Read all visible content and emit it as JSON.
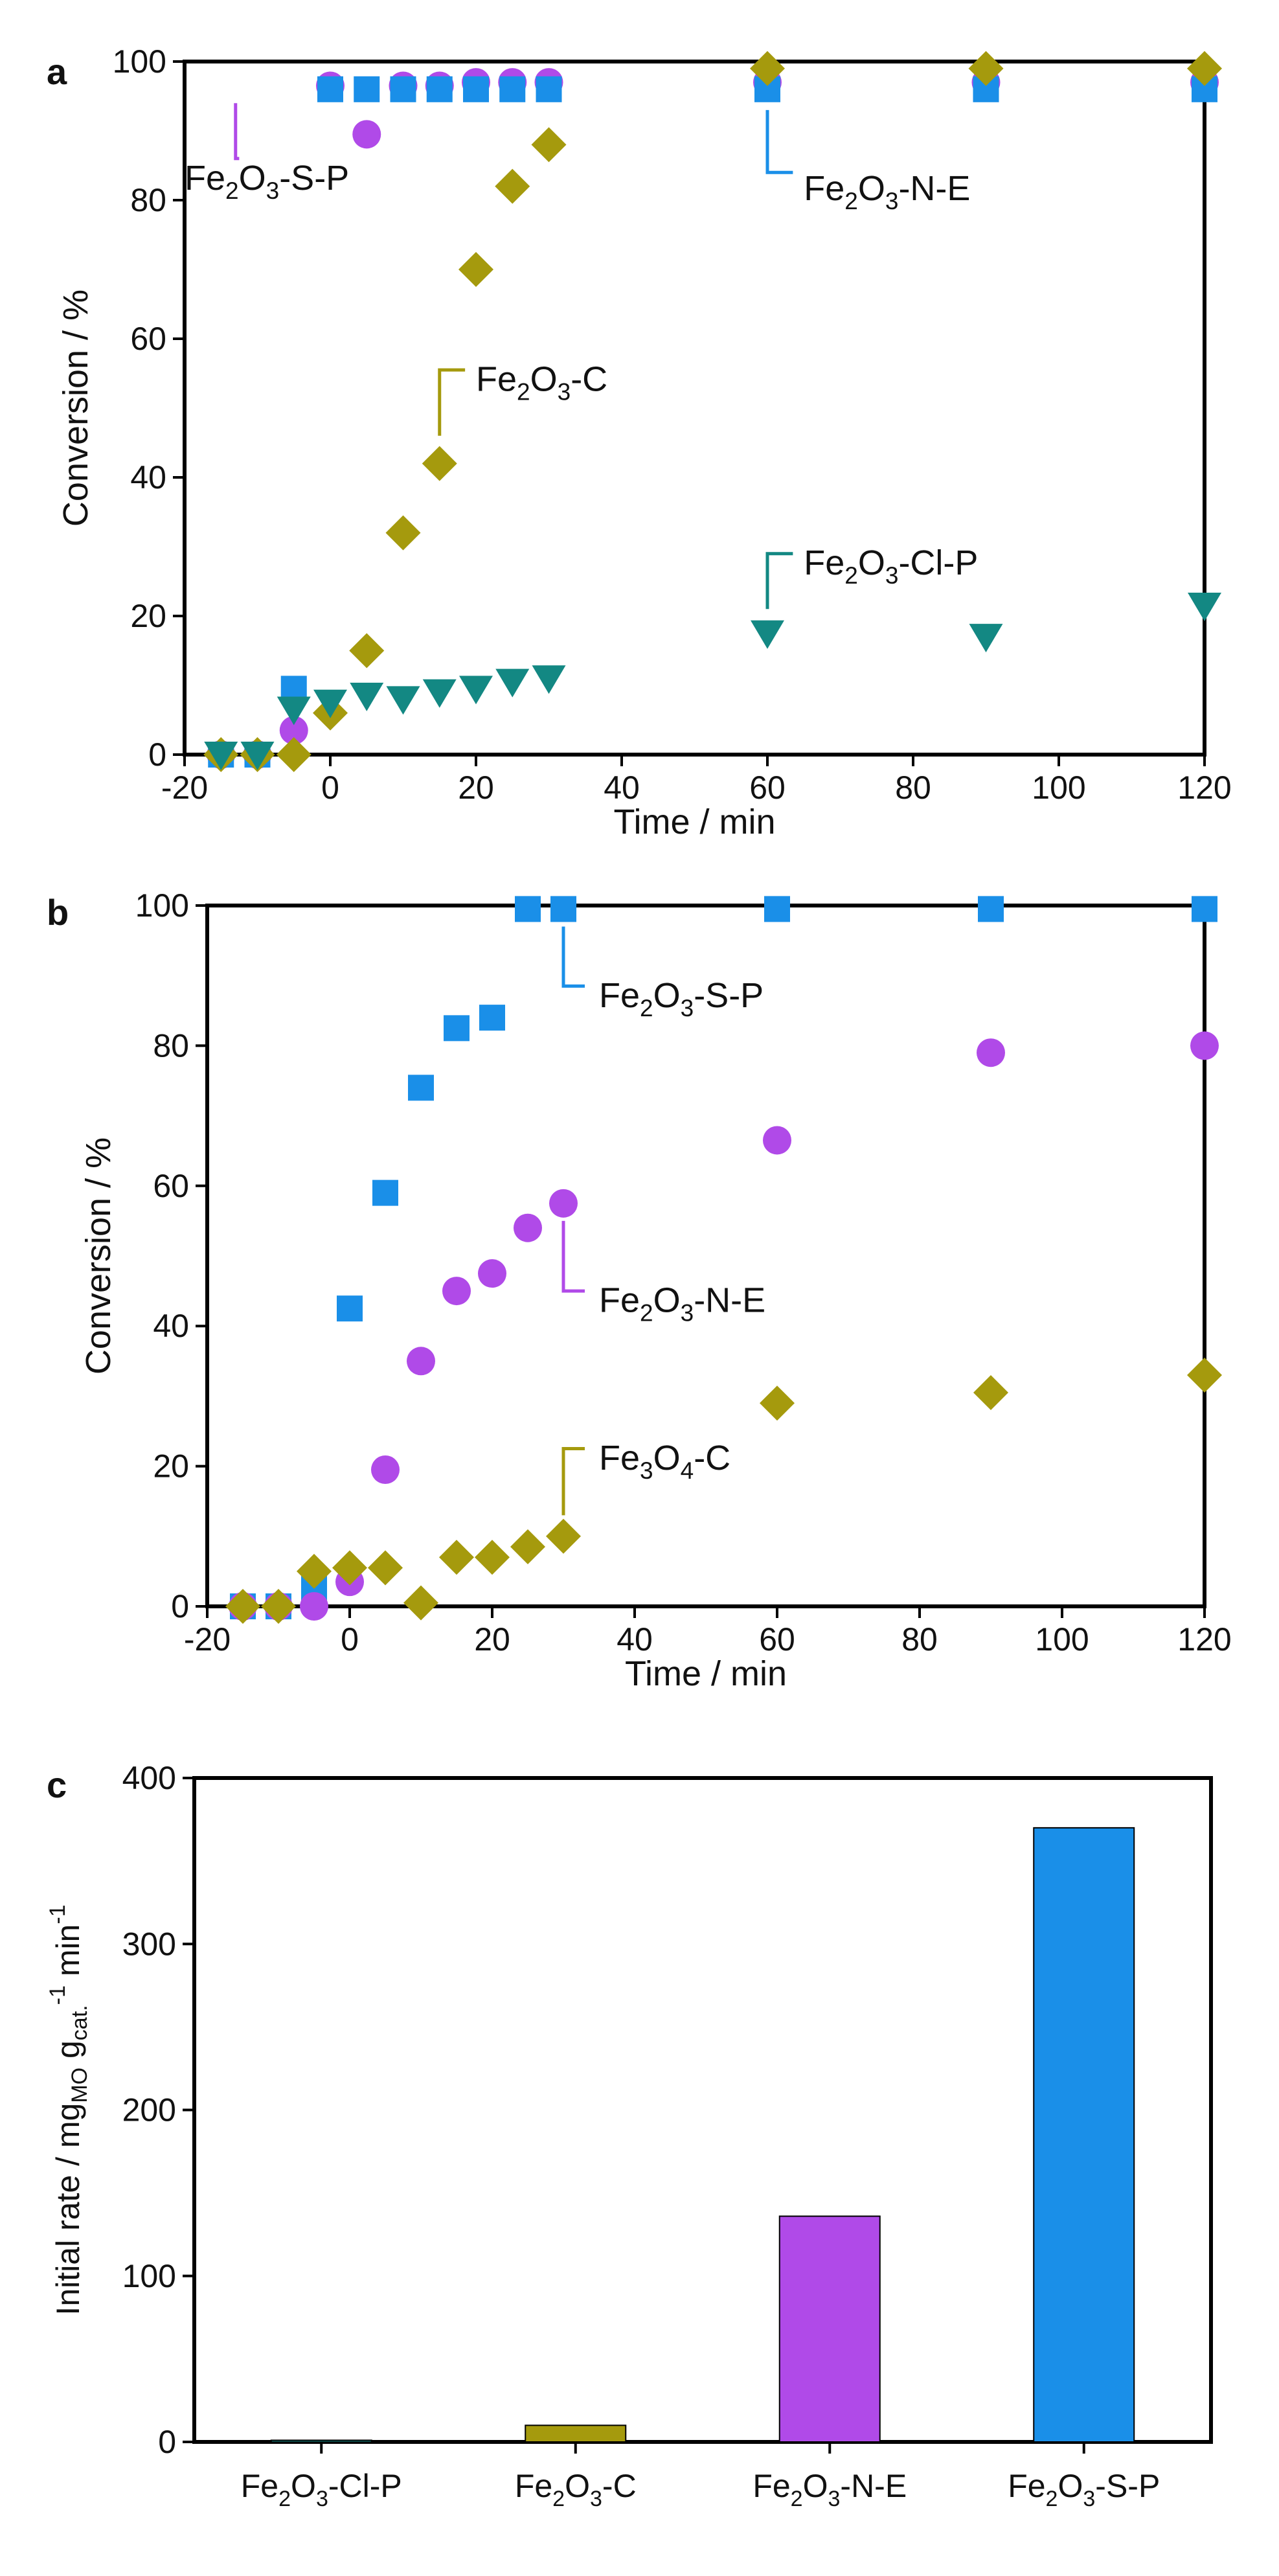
{
  "colors": {
    "blue": "#1a8fe8",
    "purple": "#b04ae8",
    "olive": "#a59a0d",
    "teal": "#138883",
    "axis": "#000000"
  },
  "chart_data": [
    {
      "panel": "a",
      "type": "scatter",
      "xlabel": "Time / min",
      "ylabel": "Conversion / %",
      "xlim": [
        -20,
        120
      ],
      "ylim": [
        0,
        100
      ],
      "xticks": [
        "-20",
        "0",
        "20",
        "40",
        "60",
        "80",
        "100",
        "120"
      ],
      "yticks": [
        "0",
        "20",
        "40",
        "60",
        "80",
        "100"
      ],
      "series": [
        {
          "name": "Fe2O3-S-P",
          "marker": "circle",
          "color": "#b04ae8",
          "x": [
            -15,
            -10,
            -5,
            0,
            5,
            10,
            15,
            20,
            25,
            30,
            60,
            90,
            120
          ],
          "y": [
            0,
            0,
            3.5,
            96.5,
            89.5,
            96.5,
            96.5,
            97,
            97,
            97,
            97,
            97,
            97
          ]
        },
        {
          "name": "Fe2O3-N-E",
          "marker": "square",
          "color": "#1a8fe8",
          "x": [
            -15,
            -10,
            -5,
            0,
            5,
            10,
            15,
            20,
            25,
            30,
            60,
            90,
            120
          ],
          "y": [
            0,
            0,
            9.5,
            96,
            96,
            96,
            96,
            96,
            96,
            96,
            96,
            96,
            96
          ]
        },
        {
          "name": "Fe2O3-C",
          "marker": "diamond",
          "color": "#a59a0d",
          "x": [
            -15,
            -10,
            -5,
            0,
            5,
            10,
            15,
            20,
            25,
            30,
            60,
            90,
            120
          ],
          "y": [
            0,
            0,
            0,
            6,
            15,
            32,
            42,
            70,
            82,
            88,
            99,
            99,
            99
          ]
        },
        {
          "name": "Fe2O3-Cl-P",
          "marker": "triangle-down",
          "color": "#138883",
          "x": [
            -15,
            -10,
            -5,
            0,
            5,
            10,
            15,
            20,
            25,
            30,
            60,
            90,
            120
          ],
          "y": [
            0,
            0,
            6.5,
            7.5,
            8.5,
            8,
            9,
            9.5,
            10.5,
            11,
            17.5,
            17,
            21.5
          ]
        }
      ],
      "annotations": [
        {
          "base": "Fe",
          "sub1": "2",
          "mid": "O",
          "sub2": "3",
          "suffix": "-S-P",
          "color": "#b04ae8"
        },
        {
          "base": "Fe",
          "sub1": "2",
          "mid": "O",
          "sub2": "3",
          "suffix": "-N-E",
          "color": "#1a8fe8"
        },
        {
          "base": "Fe",
          "sub1": "2",
          "mid": "O",
          "sub2": "3",
          "suffix": "-C",
          "color": "#a59a0d"
        },
        {
          "base": "Fe",
          "sub1": "2",
          "mid": "O",
          "sub2": "3",
          "suffix": "-Cl-P",
          "color": "#138883"
        }
      ]
    },
    {
      "panel": "b",
      "type": "scatter",
      "xlabel": "Time / min",
      "ylabel": "Conversion / %",
      "xlim": [
        -20,
        120
      ],
      "ylim": [
        0,
        100
      ],
      "xticks": [
        "-20",
        "0",
        "20",
        "40",
        "60",
        "80",
        "100",
        "120"
      ],
      "yticks": [
        "0",
        "20",
        "40",
        "60",
        "80",
        "100"
      ],
      "series": [
        {
          "name": "Fe2O3-S-P",
          "marker": "square",
          "color": "#1a8fe8",
          "x": [
            -15,
            -10,
            -5,
            0,
            5,
            10,
            15,
            20,
            25,
            30,
            60,
            90,
            120
          ],
          "y": [
            0,
            0,
            2.5,
            42.5,
            59,
            74,
            82.5,
            84,
            99.5,
            99.5,
            99.5,
            99.5,
            99.5
          ]
        },
        {
          "name": "Fe2O3-N-E",
          "marker": "circle",
          "color": "#b04ae8",
          "x": [
            -15,
            -10,
            -5,
            0,
            5,
            10,
            15,
            20,
            25,
            30,
            60,
            90,
            120
          ],
          "y": [
            0,
            0,
            0,
            3.5,
            19.5,
            35,
            45,
            47.5,
            54,
            57.5,
            66.5,
            79,
            80
          ]
        },
        {
          "name": "Fe3O4-C",
          "marker": "diamond",
          "color": "#a59a0d",
          "x": [
            -15,
            -10,
            -5,
            0,
            5,
            10,
            15,
            20,
            25,
            30,
            60,
            90,
            120
          ],
          "y": [
            0,
            0,
            5,
            5.5,
            5.5,
            0.5,
            7,
            7,
            8.5,
            10,
            29,
            30.5,
            33
          ]
        }
      ],
      "annotations": [
        {
          "base": "Fe",
          "sub1": "2",
          "mid": "O",
          "sub2": "3",
          "suffix": "-S-P",
          "color": "#1a8fe8"
        },
        {
          "base": "Fe",
          "sub1": "2",
          "mid": "O",
          "sub2": "3",
          "suffix": "-N-E",
          "color": "#b04ae8"
        },
        {
          "base": "Fe",
          "sub1": "3",
          "mid": "O",
          "sub2": "4",
          "suffix": "-C",
          "color": "#a59a0d"
        }
      ]
    },
    {
      "panel": "c",
      "type": "bar",
      "ylim": [
        0,
        400
      ],
      "yticks": [
        "0",
        "100",
        "200",
        "300",
        "400"
      ],
      "ylabel_parts": {
        "main": "Initial rate / mg",
        "sub1": "MO",
        "mid": " g",
        "sub2": "cat.",
        "sup1": "-1",
        "mid2": " min",
        "sup2": "-1"
      },
      "categories": [
        {
          "base": "Fe",
          "sub1": "2",
          "mid": "O",
          "sub2": "3",
          "suffix": "-Cl-P"
        },
        {
          "base": "Fe",
          "sub1": "2",
          "mid": "O",
          "sub2": "3",
          "suffix": "-C"
        },
        {
          "base": "Fe",
          "sub1": "2",
          "mid": "O",
          "sub2": "3",
          "suffix": "-N-E"
        },
        {
          "base": "Fe",
          "sub1": "2",
          "mid": "O",
          "sub2": "3",
          "suffix": "-S-P"
        }
      ],
      "values": [
        1,
        10,
        136,
        370
      ],
      "bar_colors": [
        "#138883",
        "#a59a0d",
        "#b04ae8",
        "#1a8fe8"
      ]
    }
  ]
}
